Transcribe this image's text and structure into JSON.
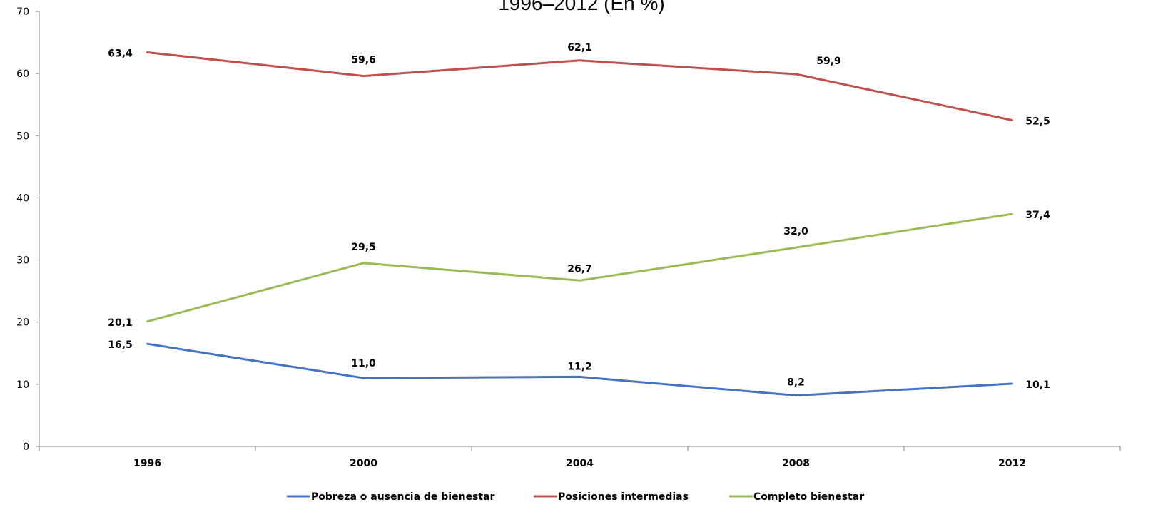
{
  "chart_data": {
    "type": "line",
    "title": "1996–2012 (En %)",
    "xlabel": "",
    "ylabel": "",
    "categories": [
      "1996",
      "2000",
      "2004",
      "2008",
      "2012"
    ],
    "ylim": [
      0,
      70
    ],
    "yticks": [
      0,
      10,
      20,
      30,
      40,
      50,
      60,
      70
    ],
    "grid": false,
    "legend_position": "bottom",
    "series": [
      {
        "name": "Pobreza o ausencia de bienestar",
        "color": "#4472C4",
        "values": [
          16.5,
          11.0,
          11.2,
          8.2,
          10.1
        ],
        "labels": [
          "16,5",
          "11,0",
          "11,2",
          "8,2",
          "10,1"
        ]
      },
      {
        "name": "Posiciones intermedias",
        "color": "#C0504D",
        "values": [
          63.4,
          59.6,
          62.1,
          59.9,
          52.5
        ],
        "labels": [
          "63,4",
          "59,6",
          "62,1",
          "59,9",
          "52,5"
        ]
      },
      {
        "name": "Completo bienestar",
        "color": "#9BBB59",
        "values": [
          20.1,
          29.5,
          26.7,
          32.0,
          37.4
        ],
        "labels": [
          "20,1",
          "29,5",
          "26,7",
          "32,0",
          "37,4"
        ]
      }
    ]
  }
}
